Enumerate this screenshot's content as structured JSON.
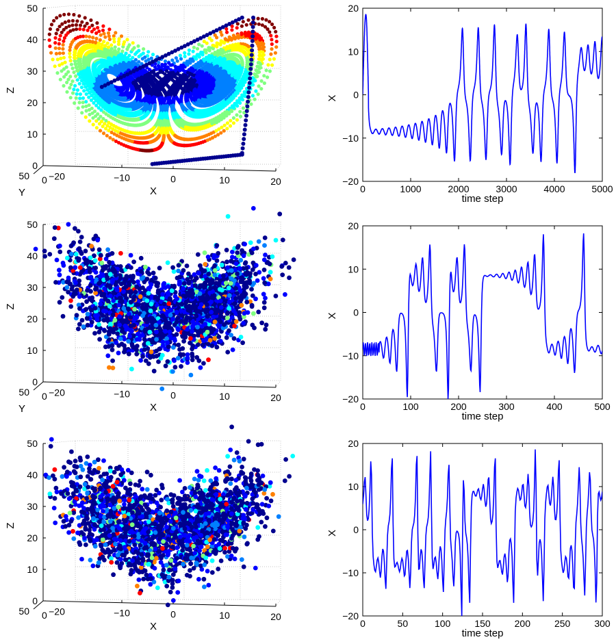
{
  "colors": {
    "series": "#0000ff",
    "axis": "#000000",
    "grid": "#b0b0b0",
    "jet": [
      "#00008f",
      "#0000ff",
      "#0080ff",
      "#00ffff",
      "#80ff80",
      "#ffff00",
      "#ff8000",
      "#ff0000",
      "#800000"
    ]
  },
  "chart_data": [
    {
      "id": "attractor-1",
      "type": "scatter",
      "projection": "3d",
      "title": "",
      "xlabel": "X",
      "ylabel": "Y",
      "zlabel": "Z",
      "xlim": [
        -20,
        20
      ],
      "ylim": [
        0,
        50
      ],
      "zlim": [
        0,
        50
      ],
      "xticks": [
        "−20",
        "−10",
        "0",
        "10",
        "20"
      ],
      "yticks": [
        "0",
        "50"
      ],
      "zticks": [
        "0",
        "10",
        "20",
        "30",
        "40",
        "50"
      ],
      "grid": true,
      "style": "trajectory"
    },
    {
      "id": "series-1",
      "type": "line",
      "title": "",
      "xlabel": "time step",
      "ylabel": "X",
      "xlim": [
        0,
        5000
      ],
      "ylim": [
        -20,
        20
      ],
      "xticks": [
        "0",
        "1000",
        "2000",
        "3000",
        "4000",
        "5000"
      ],
      "yticks": [
        "−20",
        "−10",
        "0",
        "10",
        "20"
      ],
      "grid": false,
      "style": "transient"
    },
    {
      "id": "attractor-2",
      "type": "scatter",
      "projection": "3d",
      "title": "",
      "xlabel": "X",
      "ylabel": "Y",
      "zlabel": "Z",
      "xlim": [
        -20,
        20
      ],
      "ylim": [
        0,
        50
      ],
      "zlim": [
        0,
        50
      ],
      "xticks": [
        "−20",
        "−10",
        "0",
        "10",
        "20"
      ],
      "yticks": [
        "0",
        "50"
      ],
      "zticks": [
        "0",
        "10",
        "20",
        "30",
        "40",
        "50"
      ],
      "grid": true,
      "style": "cloud"
    },
    {
      "id": "series-2",
      "type": "line",
      "title": "",
      "xlabel": "time step",
      "ylabel": "X",
      "xlim": [
        0,
        500
      ],
      "ylim": [
        -20,
        20
      ],
      "xticks": [
        "0",
        "100",
        "200",
        "300",
        "400",
        "500"
      ],
      "yticks": [
        "−20",
        "−10",
        "0",
        "10",
        "20"
      ],
      "grid": false,
      "style": "chaotic-short"
    },
    {
      "id": "attractor-3",
      "type": "scatter",
      "projection": "3d",
      "title": "",
      "xlabel": "X",
      "ylabel": "",
      "zlabel": "Z",
      "xlim": [
        -20,
        20
      ],
      "ylim": [
        0,
        50
      ],
      "zlim": [
        0,
        50
      ],
      "xticks": [
        "−20",
        "−10",
        "0",
        "10",
        "20"
      ],
      "yticks": [
        "0",
        "50"
      ],
      "zticks": [
        "0",
        "10",
        "20",
        "30",
        "40",
        "50"
      ],
      "grid": true,
      "style": "cloud"
    },
    {
      "id": "series-3",
      "type": "line",
      "title": "",
      "xlabel": "time step",
      "ylabel": "X",
      "xlim": [
        0,
        300
      ],
      "ylim": [
        -20,
        20
      ],
      "xticks": [
        "0",
        "50",
        "100",
        "150",
        "200",
        "250",
        "300"
      ],
      "yticks": [
        "−20",
        "−10",
        "0",
        "10",
        "20"
      ],
      "grid": false,
      "style": "chaotic"
    }
  ]
}
